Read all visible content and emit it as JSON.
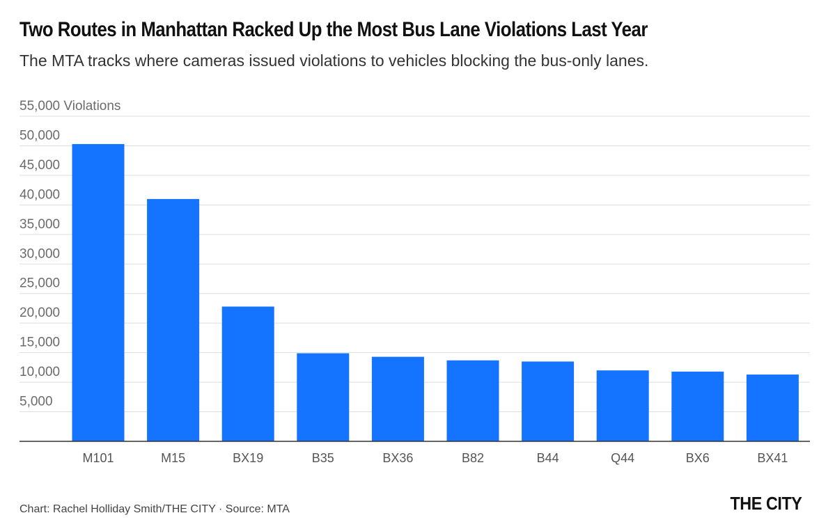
{
  "header": {
    "title": "Two Routes in Manhattan Racked Up the Most Bus Lane Violations Last Year",
    "subtitle": "The MTA tracks where cameras issued violations to vehicles blocking the bus-only lanes."
  },
  "chart_data": {
    "type": "bar",
    "categories": [
      "M101",
      "M15",
      "BX19",
      "B35",
      "BX36",
      "B82",
      "B44",
      "Q44",
      "BX6",
      "BX41"
    ],
    "values": [
      50300,
      41000,
      22800,
      14900,
      14300,
      13700,
      13500,
      12000,
      11800,
      11300
    ],
    "ylim": [
      0,
      55000
    ],
    "yticks": [
      5000,
      10000,
      15000,
      20000,
      25000,
      30000,
      35000,
      40000,
      45000,
      50000,
      55000
    ],
    "ytick_labels": [
      "5,000",
      "10,000",
      "15,000",
      "20,000",
      "25,000",
      "30,000",
      "35,000",
      "40,000",
      "45,000",
      "50,000",
      "55,000 Violations"
    ],
    "grid": true,
    "bar_color": "#1473ff",
    "grid_color": "#dddddd",
    "axis_color": "#333333"
  },
  "footer": {
    "source": "Chart: Rachel Holliday Smith/THE CITY · Source: MTA",
    "logo": "THE CITY"
  }
}
